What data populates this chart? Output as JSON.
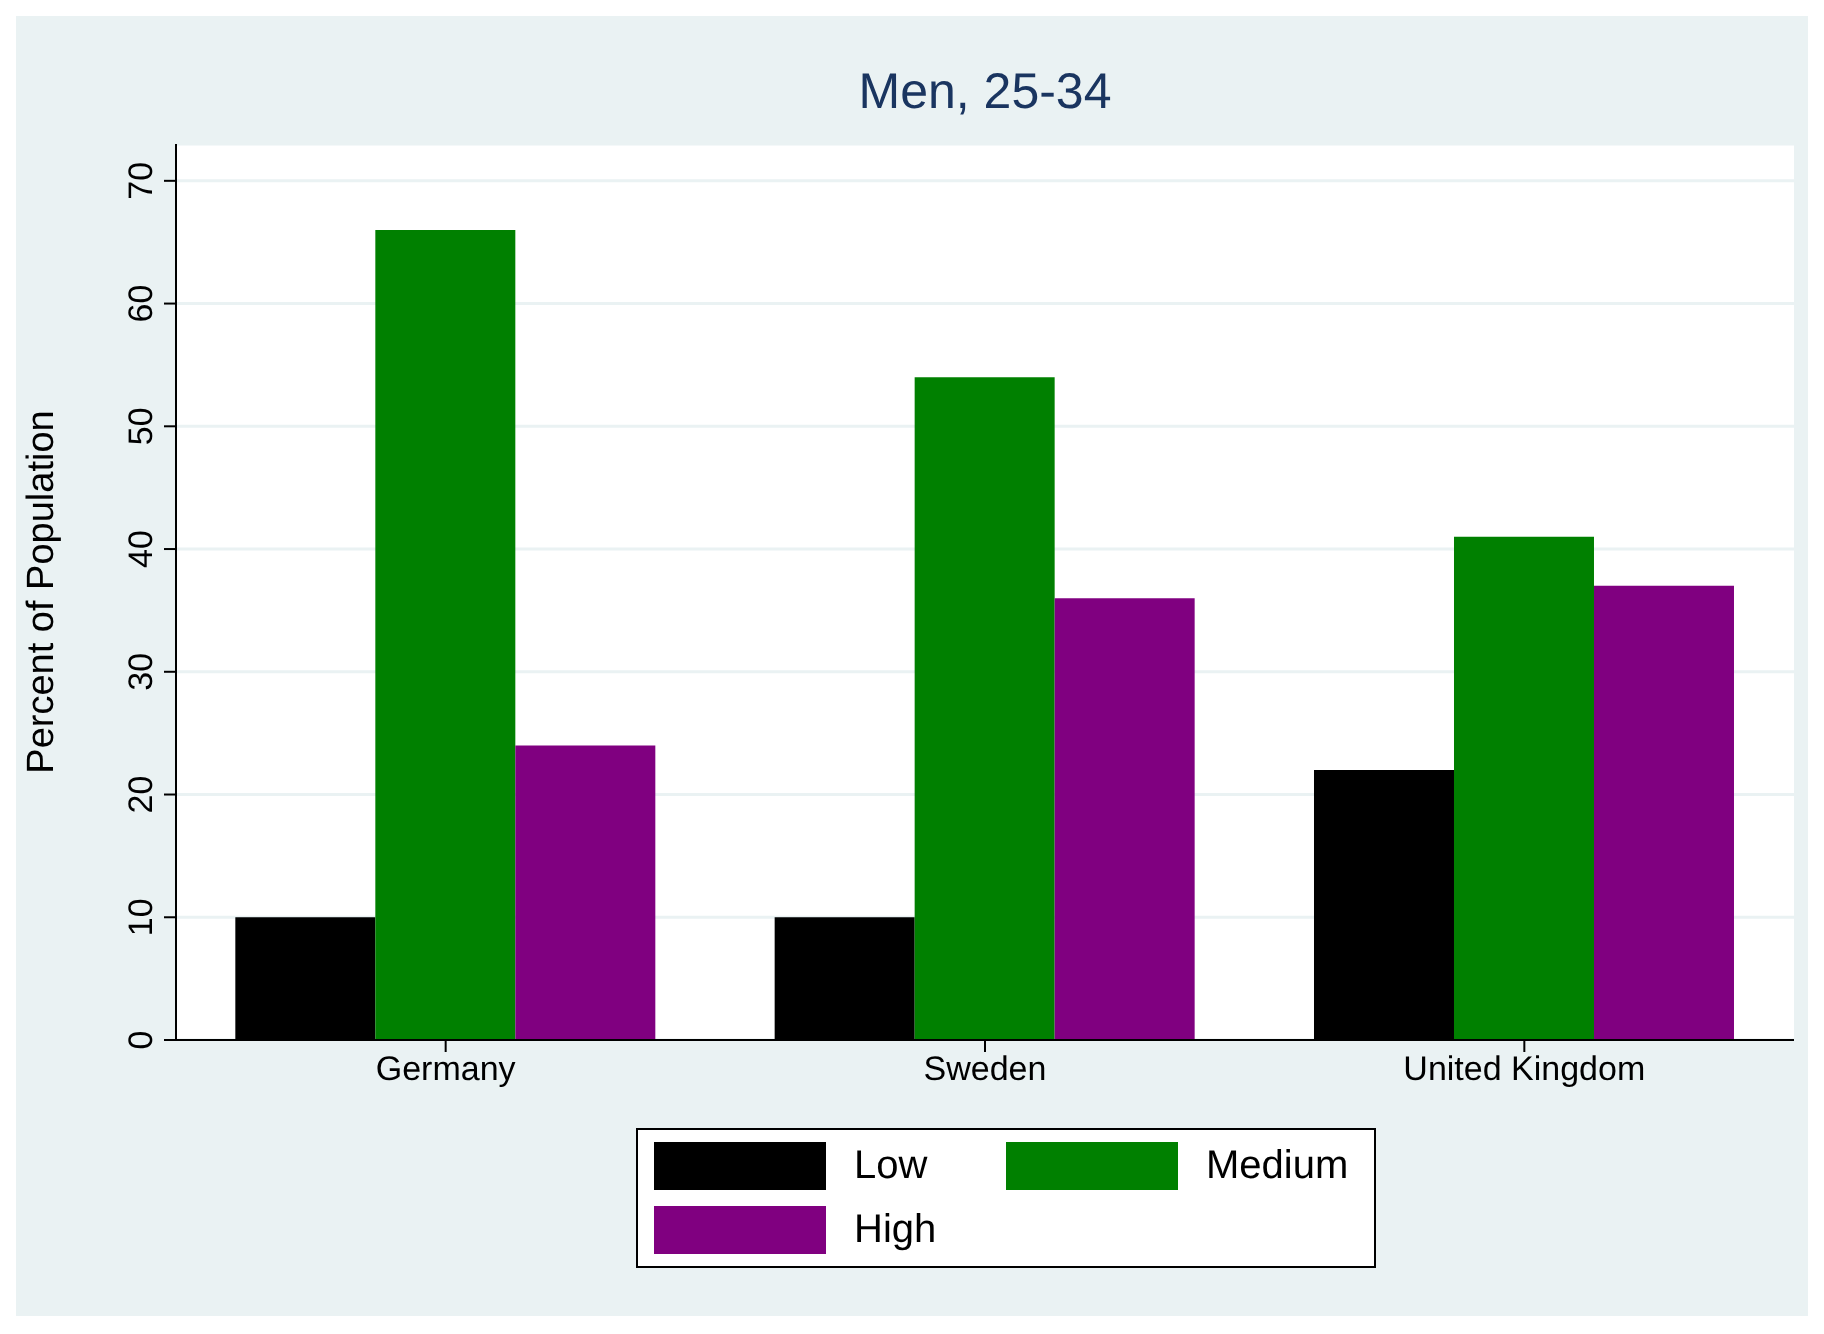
{
  "chart_data": {
    "type": "bar",
    "title": "Men, 25-34",
    "ylabel": "Percent of Population",
    "categories": [
      "Germany",
      "Sweden",
      "United Kingdom"
    ],
    "series": [
      {
        "name": "Low",
        "color": "#000000",
        "values": [
          10,
          10,
          22
        ]
      },
      {
        "name": "Medium",
        "color": "#008000",
        "values": [
          66,
          54,
          41
        ]
      },
      {
        "name": "High",
        "color": "#800080",
        "values": [
          24,
          36,
          37
        ]
      }
    ],
    "ylim": [
      0,
      73
    ],
    "yticks": [
      0,
      10,
      20,
      30,
      40,
      50,
      60,
      70
    ],
    "grid": "y",
    "legend": "bottom"
  }
}
